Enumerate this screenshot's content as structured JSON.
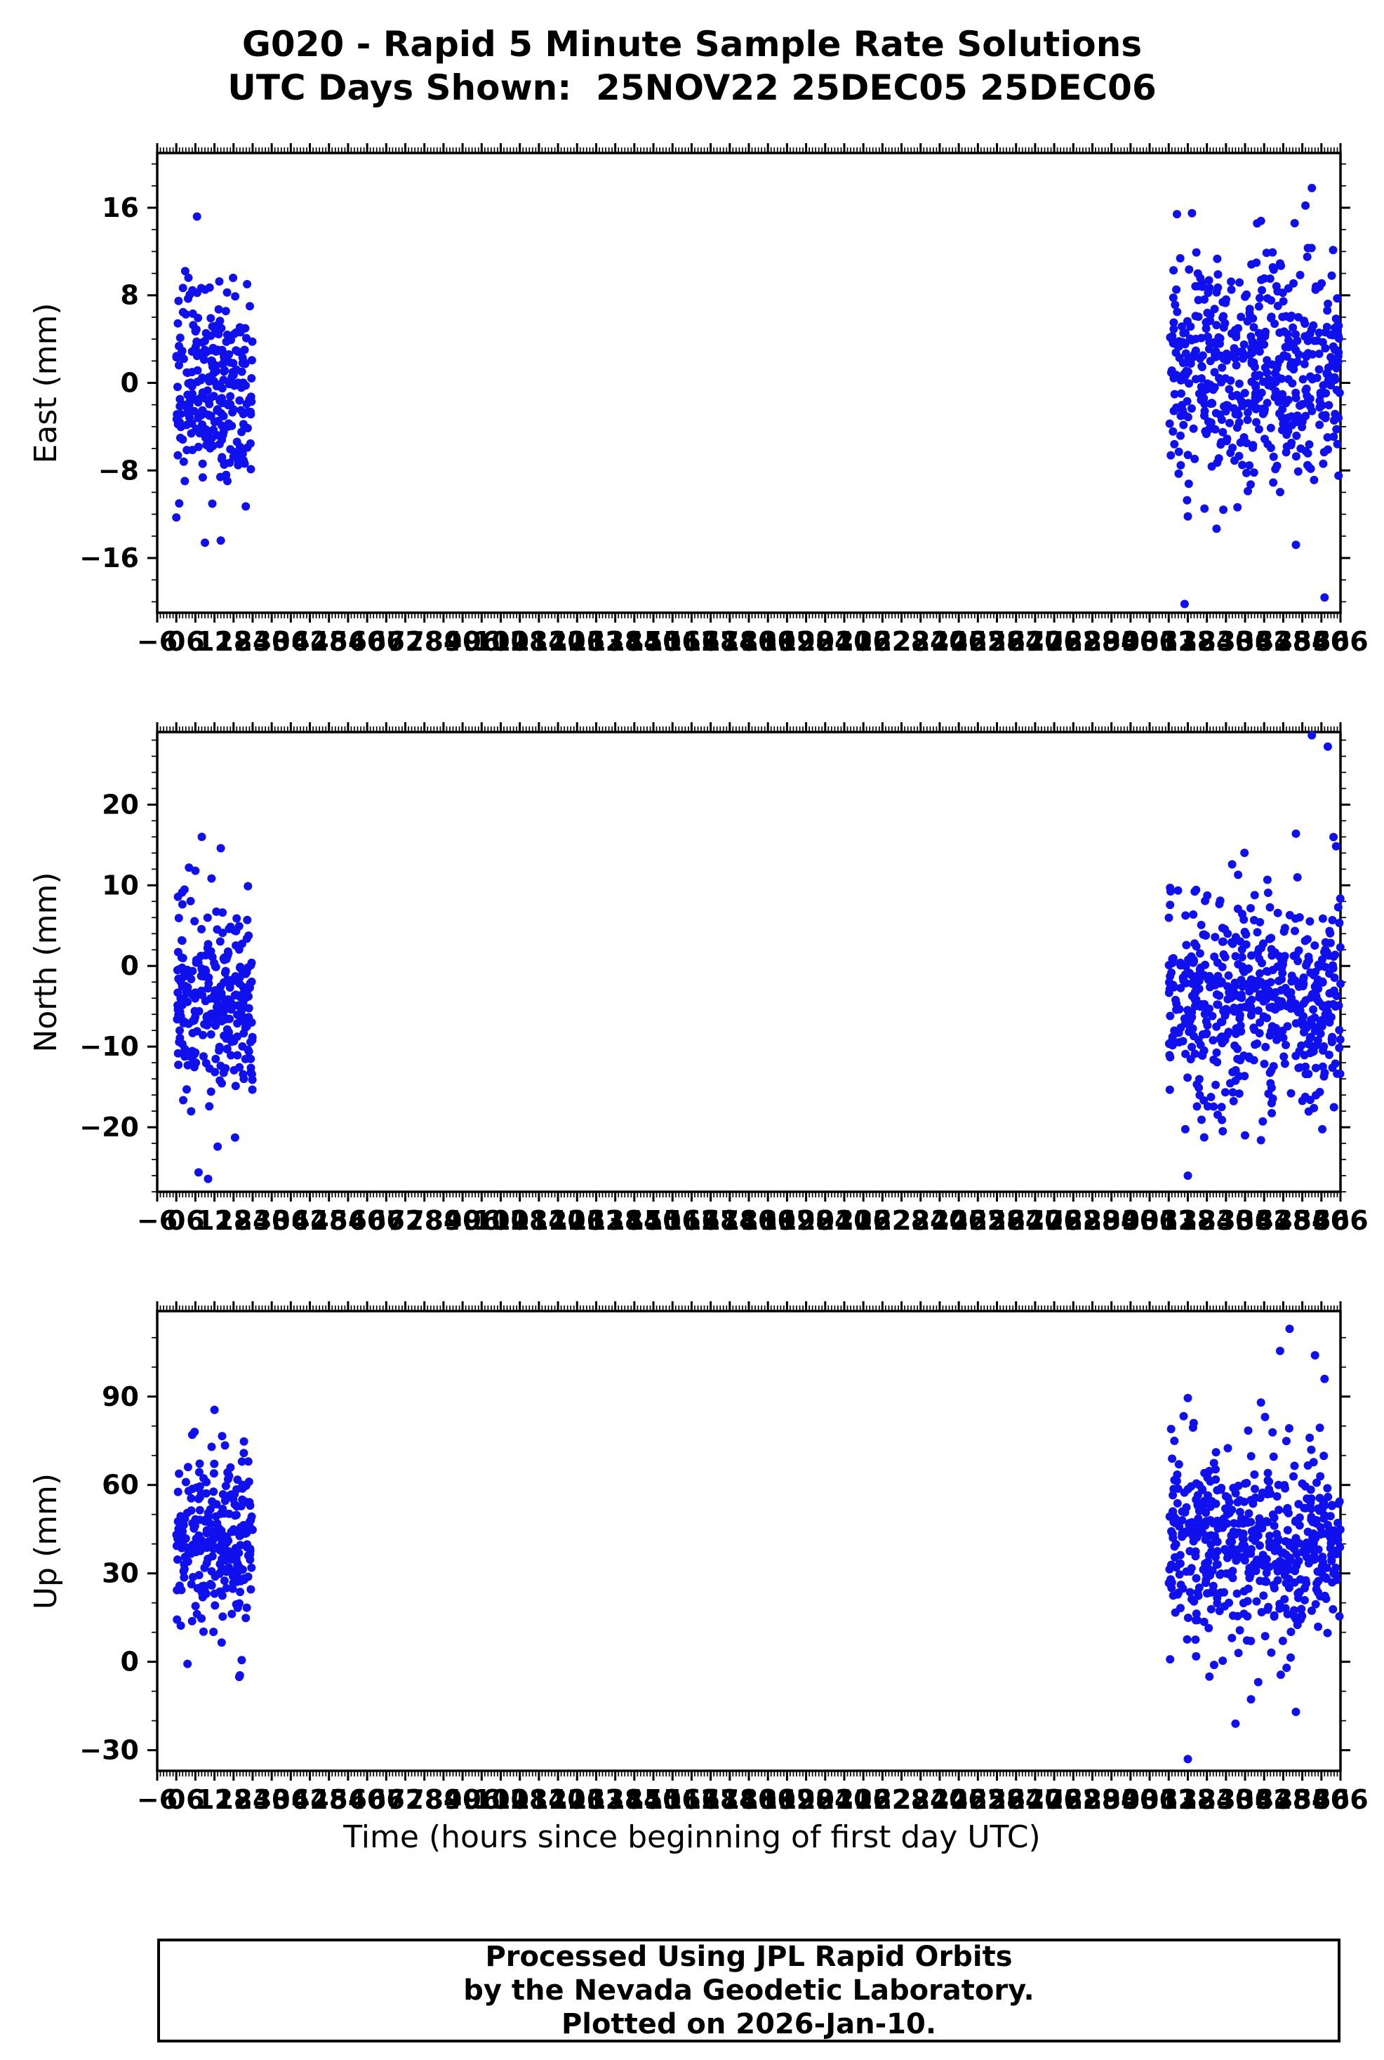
{
  "title": {
    "line1": "G020 - Rapid 5 Minute Sample Rate Solutions",
    "line2": "UTC Days Shown:  25NOV22 25DEC05 25DEC06"
  },
  "xlabel": "Time (hours since beginning of first day UTC)",
  "footer": {
    "line1": "Processed Using JPL Rapid Orbits",
    "line2": "by the Nevada Geodetic Laboratory.",
    "line3": "Plotted on 2026-Jan-10."
  },
  "colors": {
    "point": "#1010ee",
    "axis": "#000000",
    "background": "#ffffff"
  },
  "seed": 42,
  "chart_data": [
    {
      "type": "scatter",
      "name": "east",
      "ylabel": "East (mm)",
      "ylim": [
        -21,
        21
      ],
      "yticks": [
        -16,
        -8,
        0,
        8,
        16
      ],
      "yminor": 2,
      "xlim": [
        -6,
        366
      ],
      "xtick_start": -6,
      "xtick_end": 366,
      "xtick_step": 6,
      "xminor": 1,
      "grid": false,
      "clusters": [
        {
          "x_min": 0,
          "x_max": 24,
          "n": 265,
          "y_mean": -0.5,
          "y_std": 4.6,
          "y_clip": [
            -15.5,
            15.3
          ]
        },
        {
          "x_min": 312,
          "x_max": 366,
          "n": 530,
          "y_mean": 0.5,
          "y_std": 5.2,
          "y_clip": [
            -16.5,
            16.5
          ]
        }
      ],
      "outliers": [
        [
          6.5,
          15.2
        ],
        [
          9,
          -14.6
        ],
        [
          14,
          -14.4
        ],
        [
          357,
          17.8
        ],
        [
          341,
          14.8
        ],
        [
          355,
          16.2
        ],
        [
          318,
          -12.2
        ],
        [
          352,
          -14.8
        ],
        [
          317,
          -20.2
        ],
        [
          361,
          -19.6
        ]
      ]
    },
    {
      "type": "scatter",
      "name": "north",
      "ylabel": "North (mm)",
      "ylim": [
        -28,
        29
      ],
      "yticks": [
        -20,
        -10,
        0,
        10,
        20
      ],
      "yminor": 2,
      "xlim": [
        -6,
        366
      ],
      "xtick_start": -6,
      "xtick_end": 366,
      "xtick_step": 6,
      "xminor": 1,
      "grid": false,
      "clusters": [
        {
          "x_min": 0,
          "x_max": 24,
          "n": 265,
          "y_mean": -5,
          "y_std": 6,
          "y_clip": [
            -23,
            13
          ]
        },
        {
          "x_min": 312,
          "x_max": 366,
          "n": 530,
          "y_mean": -4,
          "y_std": 6.5,
          "y_clip": [
            -22,
            17
          ]
        }
      ],
      "outliers": [
        [
          8,
          16
        ],
        [
          4,
          12.2
        ],
        [
          6,
          11.8
        ],
        [
          14,
          14.6
        ],
        [
          7,
          -25.6
        ],
        [
          10,
          -26.4
        ],
        [
          13,
          -22.4
        ],
        [
          357,
          28.6
        ],
        [
          362,
          27.2
        ],
        [
          352,
          16.4
        ],
        [
          318,
          -26
        ],
        [
          341,
          -21.6
        ],
        [
          336,
          -21
        ],
        [
          329,
          -20.5
        ]
      ]
    },
    {
      "type": "scatter",
      "name": "up",
      "ylabel": "Up (mm)",
      "ylim": [
        -37,
        119
      ],
      "yticks": [
        -30,
        0,
        30,
        60,
        90
      ],
      "yminor": 10,
      "xlim": [
        -6,
        366
      ],
      "xtick_start": -6,
      "xtick_end": 366,
      "xtick_step": 6,
      "xminor": 1,
      "grid": false,
      "clusters": [
        {
          "x_min": 0,
          "x_max": 24,
          "n": 265,
          "y_mean": 40,
          "y_std": 14,
          "y_clip": [
            -6,
            80
          ]
        },
        {
          "x_min": 312,
          "x_max": 366,
          "n": 530,
          "y_mean": 38,
          "y_std": 16,
          "y_clip": [
            -16,
            92
          ]
        }
      ],
      "outliers": [
        [
          12,
          85.5
        ],
        [
          5,
          77
        ],
        [
          20,
          -4.6
        ],
        [
          350,
          113
        ],
        [
          347,
          105.5
        ],
        [
          358,
          104
        ],
        [
          361,
          96
        ],
        [
          318,
          89.5
        ],
        [
          341,
          88
        ],
        [
          318,
          -33
        ],
        [
          333,
          -21
        ],
        [
          352,
          -17
        ]
      ]
    }
  ]
}
